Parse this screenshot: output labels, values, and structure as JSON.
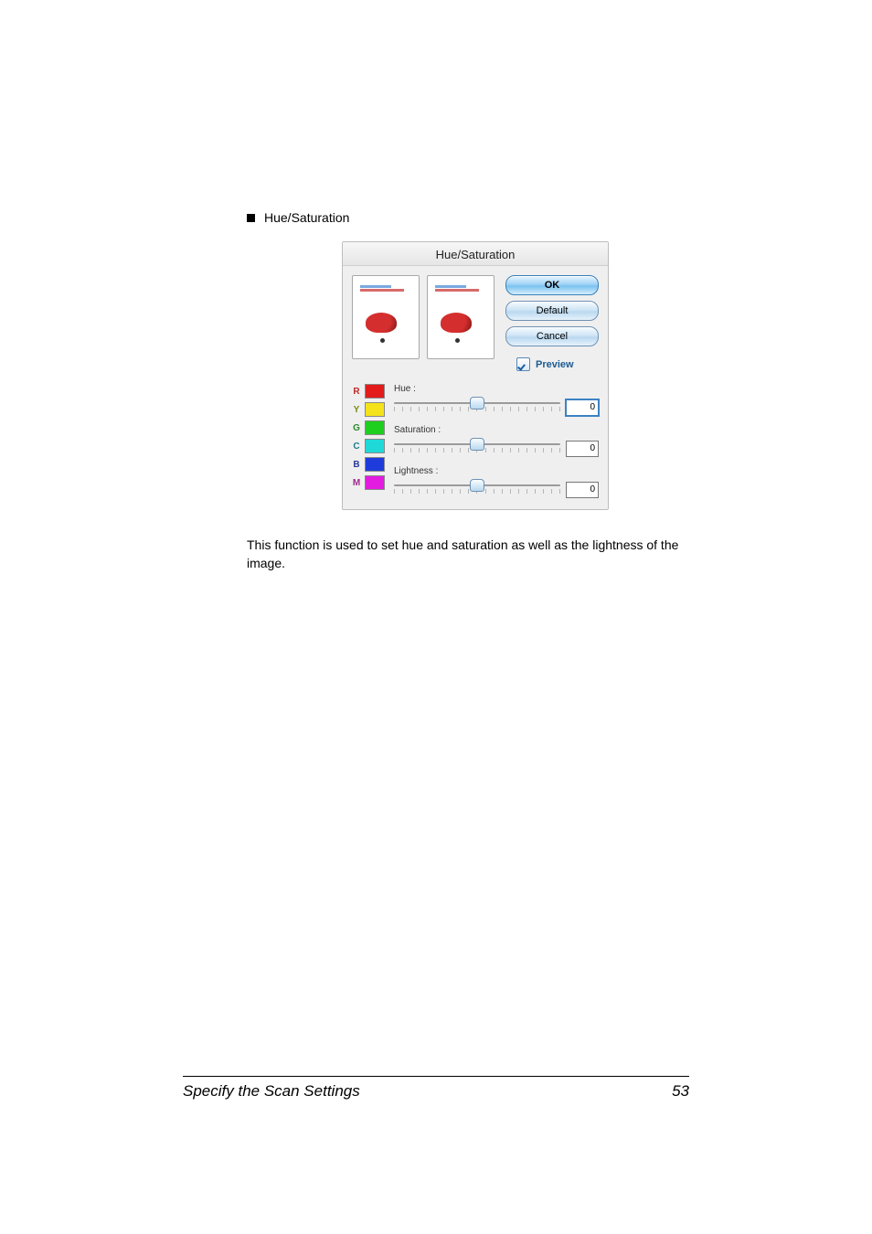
{
  "bullet_label": "Hue/Saturation",
  "dialog": {
    "title": "Hue/Saturation",
    "buttons": {
      "ok": "OK",
      "default": "Default",
      "cancel": "Cancel"
    },
    "preview_label": "Preview",
    "swatches": [
      {
        "letter": "R",
        "letter_color": "#bf2a2a",
        "color": "#e31b1b"
      },
      {
        "letter": "Y",
        "letter_color": "#7c8a17",
        "color": "#f4e21a"
      },
      {
        "letter": "G",
        "letter_color": "#2a8a2a",
        "color": "#1fcf1f"
      },
      {
        "letter": "C",
        "letter_color": "#1e7e8a",
        "color": "#1fd9d9"
      },
      {
        "letter": "B",
        "letter_color": "#2a3a9a",
        "color": "#1f3bdc"
      },
      {
        "letter": "M",
        "letter_color": "#9a2a8a",
        "color": "#e31be0"
      }
    ],
    "sliders": {
      "hue": {
        "label": "Hue :",
        "value": "0",
        "pos_pct": 50,
        "focused": true
      },
      "saturation": {
        "label": "Saturation :",
        "value": "0",
        "pos_pct": 50,
        "focused": false
      },
      "lightness": {
        "label": "Lightness :",
        "value": "0",
        "pos_pct": 50,
        "focused": false
      }
    }
  },
  "description": "This function is used to set hue and saturation as well as the lightness of the image.",
  "footer": {
    "section": "Specify the Scan Settings",
    "page": "53"
  }
}
